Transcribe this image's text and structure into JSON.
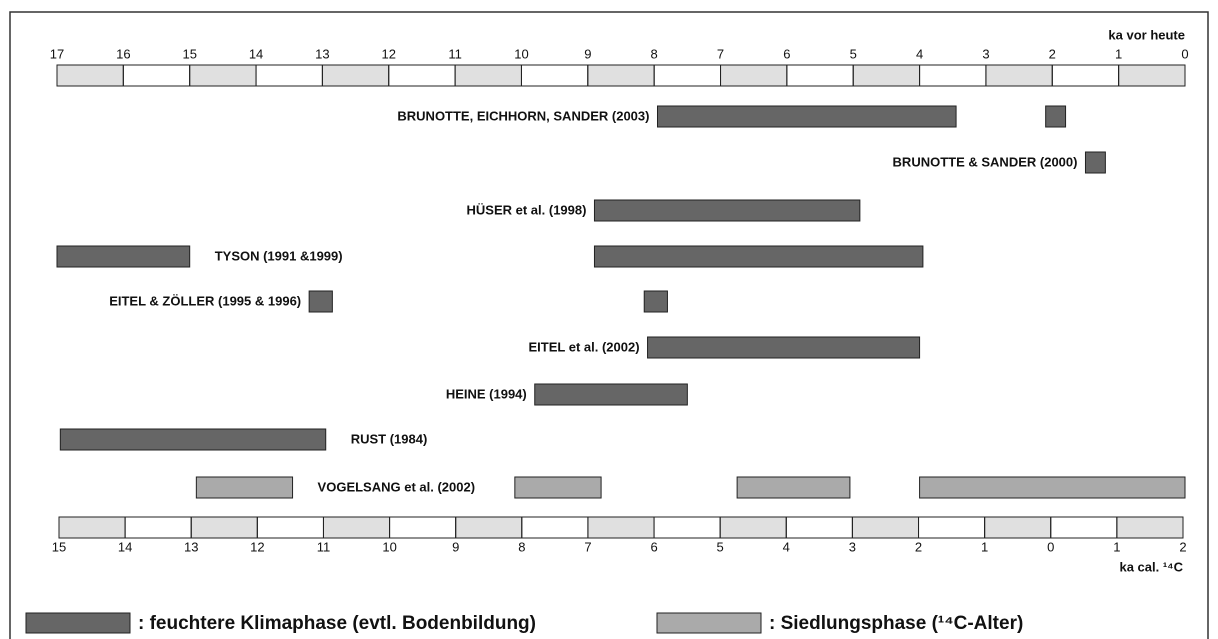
{
  "chart_data": {
    "type": "range-bar",
    "x_axis_label": "ka vor heute",
    "x2_axis_label": "ka cal. ¹⁴C",
    "xlim": [
      17,
      0
    ],
    "xticks": [
      17,
      16,
      15,
      14,
      13,
      12,
      11,
      10,
      9,
      8,
      7,
      6,
      5,
      4,
      3,
      2,
      1,
      0
    ],
    "x2lim": [
      15,
      -2
    ],
    "x2ticks": [
      15,
      14,
      13,
      12,
      11,
      10,
      9,
      8,
      7,
      6,
      5,
      4,
      3,
      2,
      1,
      0,
      {
        "value": -1,
        "label": "1"
      },
      {
        "value": -2,
        "label": "2"
      }
    ],
    "legend": [
      {
        "name": ": feuchtere Klimaphase (evtl. Bodenbildung)",
        "color": "#666666"
      },
      {
        "name": ": Siedlungsphase (¹⁴C-Alter)",
        "color": "#aaaaaa"
      }
    ],
    "rows": [
      {
        "name": "BRUNOTTE, EICHHORN, SANDER (2003)",
        "phase": 0,
        "ranges": [
          [
            7.95,
            3.45
          ],
          [
            2.1,
            1.8
          ]
        ]
      },
      {
        "name": "BRUNOTTE & SANDER (2000)",
        "phase": 0,
        "ranges": [
          [
            1.5,
            1.2
          ]
        ]
      },
      {
        "name": "HÜSER et al. (1998)",
        "phase": 0,
        "ranges": [
          [
            8.9,
            4.9
          ]
        ]
      },
      {
        "name": "TYSON (1991 &1999)",
        "phase": 0,
        "ranges": [
          [
            17,
            15
          ],
          [
            8.9,
            3.95
          ]
        ]
      },
      {
        "name": "EITEL & ZÖLLER (1995 & 1996)",
        "phase": 0,
        "ranges": [
          [
            13.2,
            12.85
          ],
          [
            8.15,
            7.8
          ]
        ]
      },
      {
        "name": "EITEL et al. (2002)",
        "phase": 0,
        "ranges": [
          [
            8.1,
            4
          ]
        ]
      },
      {
        "name": "HEINE (1994)",
        "phase": 0,
        "ranges": [
          [
            9.8,
            7.5
          ]
        ]
      },
      {
        "name": "RUST (1984)",
        "phase": 0,
        "ranges": [
          [
            16.95,
            12.95
          ]
        ]
      },
      {
        "name": "VOGELSANG et al. (2002)",
        "phase": 1,
        "ranges": [
          [
            14.9,
            13.45
          ],
          [
            10.1,
            8.8
          ],
          [
            6.75,
            5.05
          ],
          [
            4,
            0
          ]
        ]
      }
    ]
  }
}
